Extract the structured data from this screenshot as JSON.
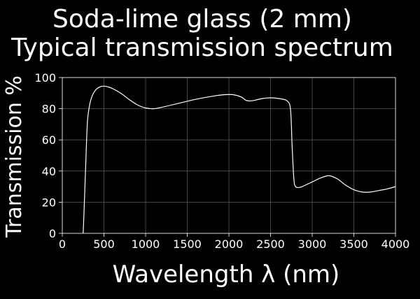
{
  "chart_data": {
    "type": "line",
    "title_lines": [
      "Soda-lime glass (2 mm)",
      "Typical transmission spectrum"
    ],
    "xlabel": "Wavelength λ (nm)",
    "ylabel": "Transmission %",
    "xlim": [
      0,
      4000
    ],
    "ylim": [
      0,
      100
    ],
    "xticks": [
      0,
      500,
      1000,
      1500,
      2000,
      2500,
      3000,
      3500,
      4000
    ],
    "yticks": [
      0,
      20,
      40,
      60,
      80,
      100
    ],
    "grid": true,
    "series": [
      {
        "color": "#ffffff",
        "x": [
          250,
          260,
          280,
          300,
          320,
          350,
          400,
          450,
          500,
          550,
          600,
          700,
          800,
          900,
          1000,
          1100,
          1200,
          1400,
          1600,
          1800,
          1950,
          2050,
          2150,
          2200,
          2250,
          2300,
          2400,
          2500,
          2600,
          2700,
          2740,
          2760,
          2780,
          2800,
          2850,
          2900,
          3000,
          3100,
          3200,
          3300,
          3400,
          3500,
          3600,
          3700,
          3800,
          3900,
          4000
        ],
        "y": [
          0,
          12,
          42,
          70,
          80,
          87,
          92,
          94,
          94.5,
          94,
          93,
          90,
          86,
          82.5,
          80.5,
          80,
          81,
          83.5,
          86,
          88,
          89,
          89,
          87.5,
          85.5,
          85,
          85.3,
          86.5,
          87,
          86.5,
          85,
          79,
          55,
          35,
          30,
          29.5,
          30.5,
          33,
          35.5,
          37,
          35,
          31,
          28,
          26.5,
          26.5,
          27.5,
          28.5,
          30
        ]
      }
    ]
  }
}
